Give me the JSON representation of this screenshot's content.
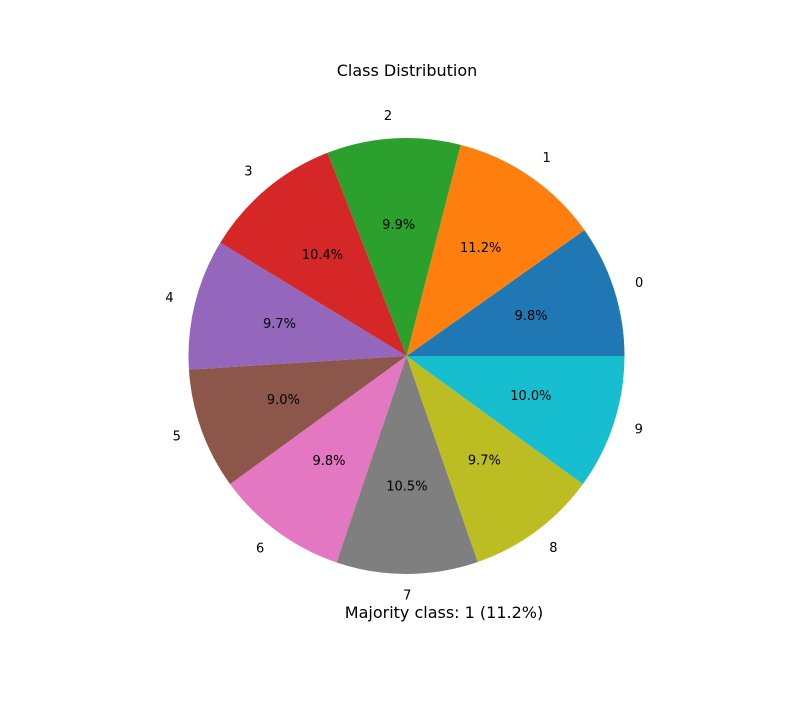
{
  "chart_data": {
    "type": "pie",
    "title": "Class Distribution",
    "categories": [
      "0",
      "1",
      "2",
      "3",
      "4",
      "5",
      "6",
      "7",
      "8",
      "9"
    ],
    "values": [
      9.8,
      11.2,
      9.9,
      10.4,
      9.7,
      9.0,
      9.8,
      10.5,
      9.7,
      10.0
    ],
    "value_labels": [
      "9.8%",
      "11.2%",
      "9.9%",
      "10.4%",
      "9.7%",
      "9.0%",
      "9.8%",
      "10.5%",
      "9.7%",
      "10.0%"
    ],
    "colors": [
      "#1f77b4",
      "#ff7f0e",
      "#2ca02c",
      "#d62728",
      "#9467bd",
      "#8c564b",
      "#e377c2",
      "#7f7f7f",
      "#bcbd22",
      "#17becf"
    ],
    "start_angle_deg": 0,
    "direction": "counterclockwise",
    "annotation": "Majority class: 1 (11.2%)"
  }
}
